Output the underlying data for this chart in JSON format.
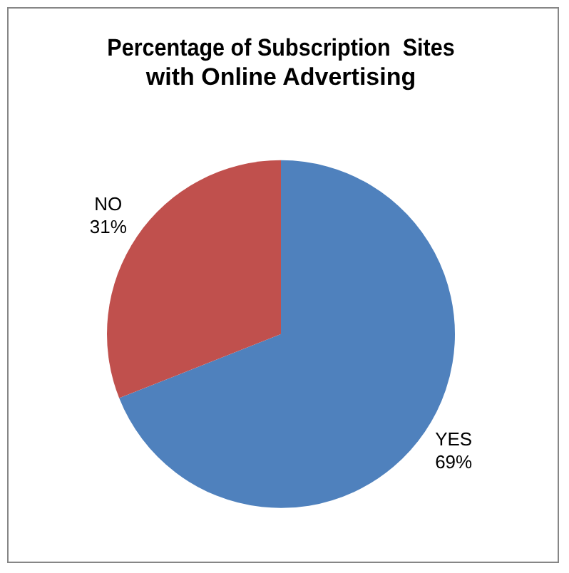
{
  "chart_data": {
    "type": "pie",
    "title": "Percentage of Subscription  Sites\nwith Online Advertising",
    "categories": [
      "YES",
      "NO"
    ],
    "values": [
      69,
      31
    ],
    "value_labels": [
      "69%",
      "31%"
    ],
    "colors": [
      "#4f81bd",
      "#c0504d"
    ],
    "legend": false
  }
}
